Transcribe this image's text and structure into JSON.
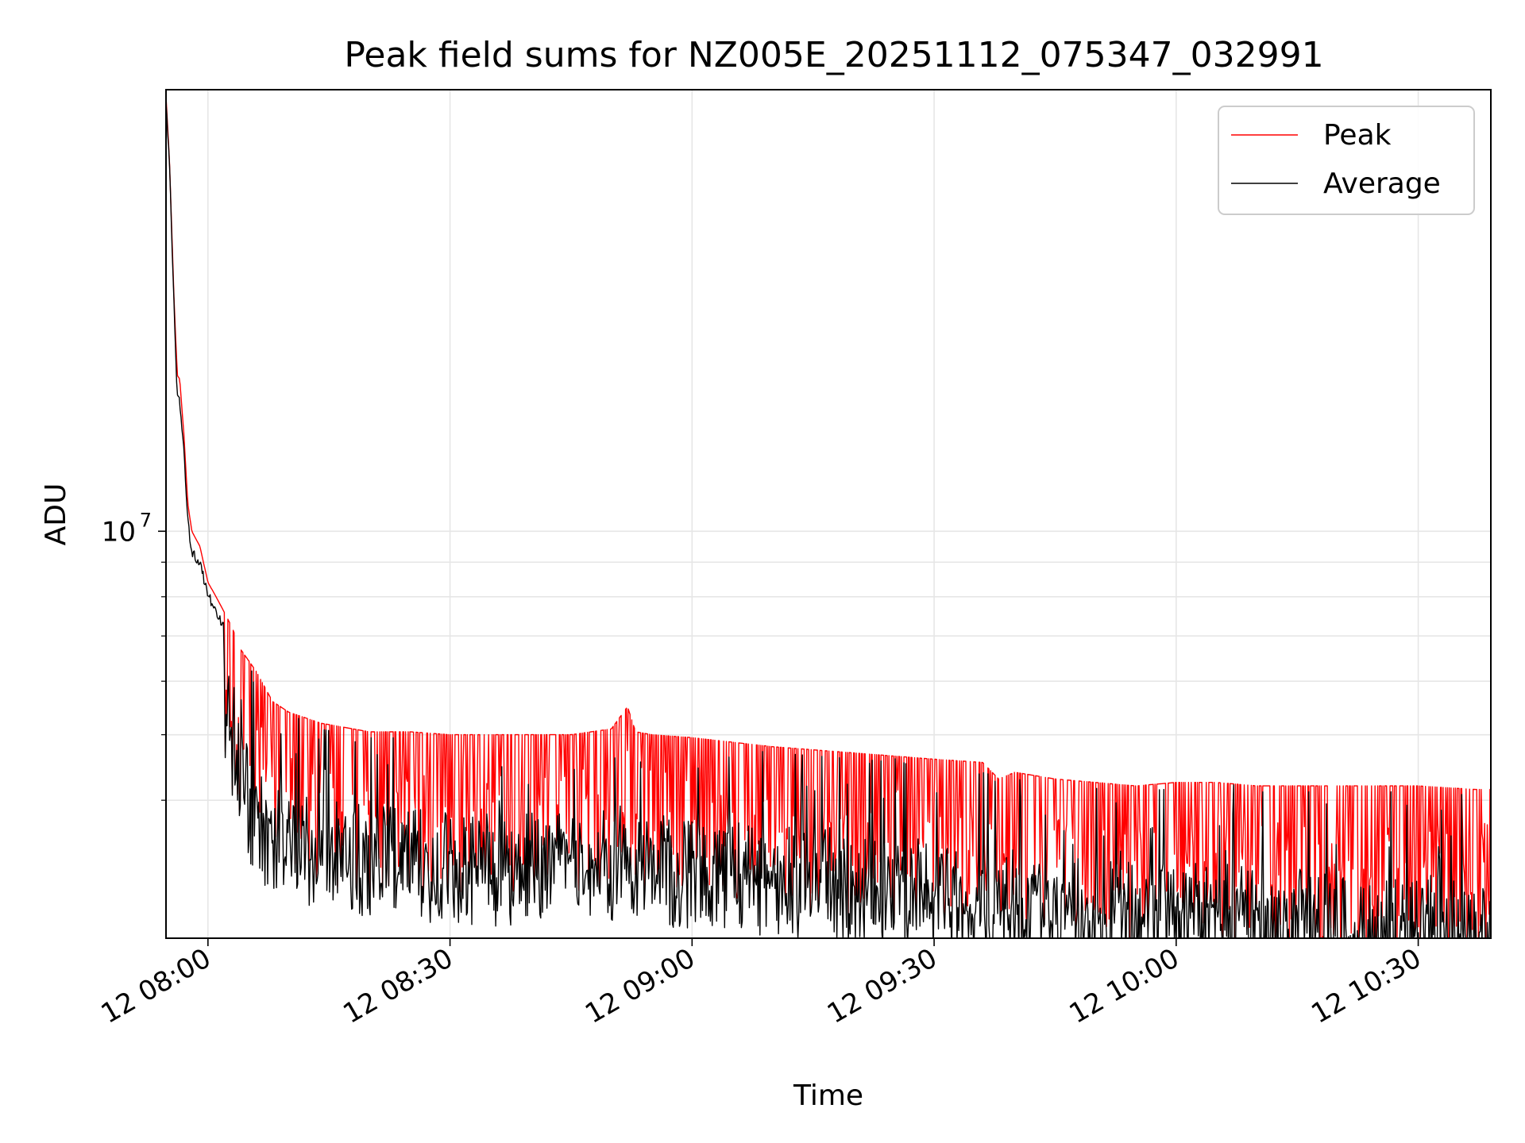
{
  "chart_data": {
    "type": "line",
    "title": "Peak field sums for NZ005E_20251112_075347_032991",
    "xlabel": "Time",
    "ylabel": "ADU",
    "yscale": "log",
    "xlim_minutes": [
      -5.2,
      159.0
    ],
    "ylim": [
      2500000,
      45000000
    ],
    "x_ticks": [
      {
        "label": "12 08:00",
        "minutes": 0
      },
      {
        "label": "12 08:30",
        "minutes": 30
      },
      {
        "label": "12 09:00",
        "minutes": 60
      },
      {
        "label": "12 09:30",
        "minutes": 90
      },
      {
        "label": "12 10:00",
        "minutes": 120
      },
      {
        "label": "12 10:30",
        "minutes": 150
      }
    ],
    "y_major_ticks": [
      {
        "base": "10",
        "exp": "7",
        "value": 10000000
      }
    ],
    "y_minor_ticks": [
      4000000,
      5000000,
      6000000,
      7000000,
      8000000,
      9000000
    ],
    "grid": true,
    "legend_position": "top-right",
    "series": [
      {
        "name": "Peak",
        "color": "#ff0000",
        "x_minutes": [
          -5.2,
          -4.8,
          -4.2,
          -3.8,
          -3.5,
          -3.0,
          -2.5,
          -2.0,
          -1.0,
          0,
          0.5,
          1,
          2,
          3,
          4,
          6,
          8,
          10,
          12,
          14,
          16,
          18,
          20,
          25,
          30,
          35,
          40,
          45,
          50,
          52,
          53,
          55,
          60,
          70,
          80,
          90,
          96,
          98,
          100,
          105,
          110,
          115,
          120,
          125,
          130,
          140,
          150,
          157,
          159
        ],
        "values": [
          44000000,
          36000000,
          22000000,
          17000000,
          16800000,
          14000000,
          11000000,
          10000000,
          9500000,
          8400000,
          8200000,
          8000000,
          7600000,
          7200000,
          6700000,
          6200000,
          5600000,
          5400000,
          5300000,
          5200000,
          5150000,
          5100000,
          5050000,
          5050000,
          5000000,
          5000000,
          5000000,
          5000000,
          5100000,
          5500000,
          5050000,
          5000000,
          4950000,
          4800000,
          4700000,
          4600000,
          4550000,
          4300000,
          4400000,
          4300000,
          4250000,
          4200000,
          4250000,
          4250000,
          4200000,
          4200000,
          4200000,
          4150000,
          4150000
        ],
        "spike_depth_min": 1.12,
        "spike_depth_max": 1.75
      },
      {
        "name": "Average",
        "color": "#000000",
        "x_minutes": [
          -5.2,
          -4.8,
          -4.2,
          -3.8,
          -3.5,
          -3.0,
          -2.5,
          -2.0,
          -1.0,
          0,
          1,
          2,
          3,
          4,
          5,
          6,
          7,
          8,
          10,
          12,
          14,
          16,
          18,
          20,
          25,
          30,
          35,
          40,
          45,
          50,
          52,
          55,
          60,
          70,
          80,
          90,
          96,
          100,
          110,
          120,
          130,
          140,
          150,
          157,
          159
        ],
        "values": [
          44000000,
          36000000,
          22000000,
          16000000,
          15800000,
          13500000,
          10500000,
          9500000,
          9100000,
          8200000,
          7700000,
          7300000,
          6500000,
          6000000,
          4700000,
          4400000,
          4300000,
          4300000,
          4200000,
          4100000,
          4050000,
          4000000,
          3980000,
          3950000,
          3900000,
          3850000,
          3830000,
          3830000,
          3850000,
          3900000,
          4000000,
          3800000,
          3780000,
          3700000,
          3600000,
          3500000,
          3300000,
          3300000,
          3250000,
          3250000,
          3200000,
          3150000,
          3100000,
          3100000,
          3100000
        ],
        "noise_depth": 0.32
      }
    ]
  }
}
